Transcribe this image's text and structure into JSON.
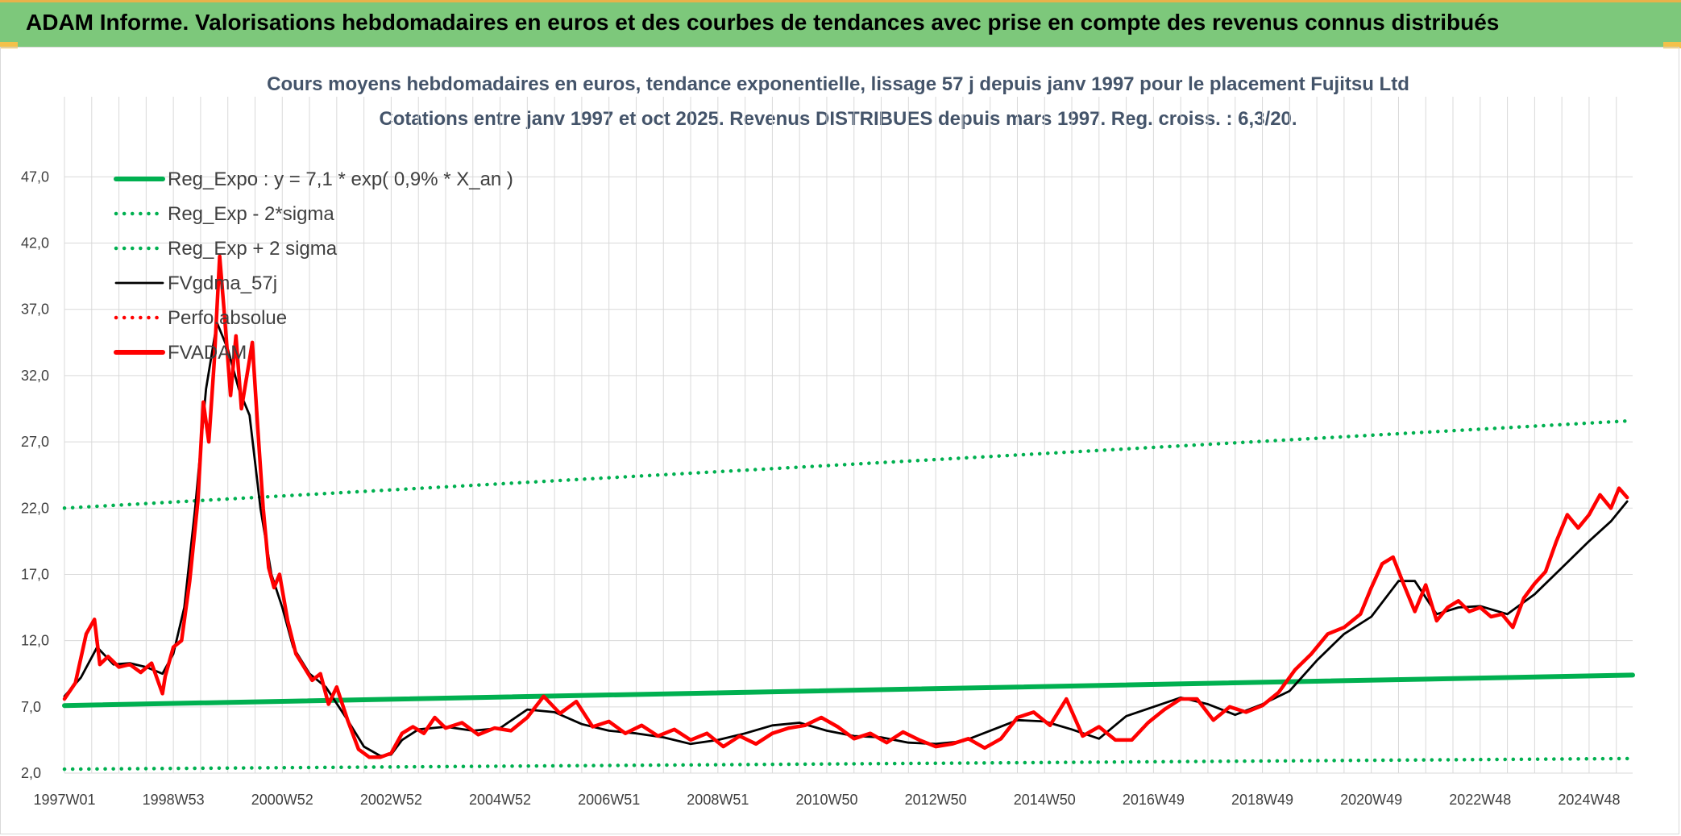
{
  "header": {
    "title": "ADAM Informe. Valorisations hebdomadaires en euros et des courbes de tendances avec prise en compte des revenus connus distribués"
  },
  "colors": {
    "header_bg": "#7dc87b",
    "accent": "#f3c14a",
    "reg_green": "#00b050",
    "smoothed_black": "#000000",
    "price_red": "#ff0000",
    "grid": "#d9d9d9",
    "title_text": "#44546a"
  },
  "chart_data": {
    "type": "line",
    "title": "Cours moyens hebdomadaires en euros, tendance exponentielle, lissage 57 j depuis janv 1997 pour le placement Fujitsu Ltd",
    "subtitle": "Cotations entre janv 1997 et oct 2025. Revenus DISTRIBUES depuis mars 1997. Reg. croiss. : 6,3/20.",
    "xlabel": "",
    "ylabel": "",
    "x_range": [
      1997.0,
      2025.8
    ],
    "ylim": [
      2.0,
      50.0
    ],
    "y_ticks": [
      "2,0",
      "7,0",
      "12,0",
      "17,0",
      "22,0",
      "27,0",
      "32,0",
      "37,0",
      "42,0",
      "47,0"
    ],
    "y_tick_values": [
      2,
      7,
      12,
      17,
      22,
      27,
      32,
      37,
      42,
      47
    ],
    "x_ticks": [
      {
        "label": "1997W01",
        "x": 1997.0
      },
      {
        "label": "1998W53",
        "x": 1999.0
      },
      {
        "label": "2000W52",
        "x": 2001.0
      },
      {
        "label": "2002W52",
        "x": 2003.0
      },
      {
        "label": "2004W52",
        "x": 2005.0
      },
      {
        "label": "2006W51",
        "x": 2007.0
      },
      {
        "label": "2008W51",
        "x": 2009.0
      },
      {
        "label": "2010W50",
        "x": 2011.0
      },
      {
        "label": "2012W50",
        "x": 2013.0
      },
      {
        "label": "2014W50",
        "x": 2015.0
      },
      {
        "label": "2016W49",
        "x": 2017.0
      },
      {
        "label": "2018W49",
        "x": 2019.0
      },
      {
        "label": "2020W49",
        "x": 2021.0
      },
      {
        "label": "2022W48",
        "x": 2023.0
      },
      {
        "label": "2024W48",
        "x": 2025.0
      }
    ],
    "grid": true,
    "legend_position": "top-left",
    "series": [
      {
        "name": "Reg_Expo : y = 7,1 * exp( 0,9% *  X_an )",
        "style": "solid-thick",
        "color": "#00b050",
        "x": [
          1997.0,
          2025.8
        ],
        "y": [
          7.1,
          9.4
        ]
      },
      {
        "name": "Reg_Exp - 2*sigma",
        "style": "dotted",
        "color": "#00b050",
        "x": [
          1997.0,
          2025.8
        ],
        "y": [
          2.3,
          3.1
        ]
      },
      {
        "name": "Reg_Exp + 2 sigma",
        "style": "dotted",
        "color": "#00b050",
        "x": [
          1997.0,
          2025.8
        ],
        "y": [
          22.0,
          28.6
        ]
      },
      {
        "name": "FVgdma_57j",
        "style": "solid",
        "color": "#000000",
        "x": [
          1997.0,
          1997.3,
          1997.6,
          1997.9,
          1998.2,
          1998.5,
          1998.8,
          1999.0,
          1999.2,
          1999.4,
          1999.6,
          1999.8,
          2000.0,
          2000.2,
          2000.4,
          2000.6,
          2000.8,
          2001.0,
          2001.2,
          2001.5,
          2001.8,
          2002.2,
          2002.5,
          2002.8,
          2003.0,
          2003.2,
          2003.5,
          2004.0,
          2004.5,
          2005.0,
          2005.5,
          2006.0,
          2006.5,
          2007.0,
          2007.5,
          2008.0,
          2008.5,
          2009.0,
          2009.5,
          2010.0,
          2010.5,
          2011.0,
          2011.5,
          2012.0,
          2012.5,
          2013.0,
          2013.5,
          2014.0,
          2014.5,
          2015.0,
          2015.5,
          2016.0,
          2016.5,
          2017.0,
          2017.5,
          2018.0,
          2018.5,
          2019.0,
          2019.5,
          2020.0,
          2020.5,
          2021.0,
          2021.5,
          2021.8,
          2022.2,
          2022.6,
          2023.0,
          2023.5,
          2024.0,
          2024.5,
          2025.0,
          2025.4,
          2025.7
        ],
        "y": [
          7.8,
          9.2,
          11.5,
          10.2,
          10.3,
          10.0,
          9.5,
          11.0,
          14.5,
          22.0,
          31.0,
          36.0,
          34.0,
          31.0,
          29.0,
          22.0,
          17.0,
          14.5,
          11.5,
          9.5,
          8.5,
          6.0,
          4.0,
          3.3,
          3.4,
          4.5,
          5.3,
          5.5,
          5.2,
          5.4,
          6.8,
          6.6,
          5.7,
          5.2,
          5.0,
          4.7,
          4.2,
          4.5,
          5.0,
          5.6,
          5.8,
          5.2,
          4.8,
          4.7,
          4.3,
          4.2,
          4.4,
          5.2,
          6.0,
          5.9,
          5.3,
          4.6,
          6.3,
          7.0,
          7.7,
          7.2,
          6.4,
          7.2,
          8.2,
          10.5,
          12.5,
          13.8,
          16.5,
          16.5,
          14.0,
          14.5,
          14.6,
          14.0,
          15.5,
          17.5,
          19.5,
          21.0,
          22.5
        ]
      },
      {
        "name": "Perfo.absolue",
        "style": "dotted",
        "color": "#ff0000",
        "x": [],
        "y": []
      },
      {
        "name": "FVADAM",
        "style": "solid-thick",
        "color": "#ff0000",
        "x": [
          1997.0,
          1997.2,
          1997.4,
          1997.55,
          1997.65,
          1997.8,
          1998.0,
          1998.2,
          1998.4,
          1998.6,
          1998.8,
          1998.85,
          1999.0,
          1999.15,
          1999.3,
          1999.45,
          1999.55,
          1999.65,
          1999.75,
          1999.85,
          1999.95,
          2000.05,
          2000.15,
          2000.25,
          2000.35,
          2000.45,
          2000.55,
          2000.65,
          2000.75,
          2000.85,
          2000.95,
          2001.1,
          2001.25,
          2001.4,
          2001.55,
          2001.7,
          2001.85,
          2002.0,
          2002.2,
          2002.4,
          2002.6,
          2002.8,
          2003.0,
          2003.2,
          2003.4,
          2003.6,
          2003.8,
          2004.0,
          2004.3,
          2004.6,
          2004.9,
          2005.2,
          2005.5,
          2005.8,
          2006.1,
          2006.4,
          2006.7,
          2007.0,
          2007.3,
          2007.6,
          2007.9,
          2008.2,
          2008.5,
          2008.8,
          2009.1,
          2009.4,
          2009.7,
          2010.0,
          2010.3,
          2010.6,
          2010.9,
          2011.2,
          2011.5,
          2011.8,
          2012.1,
          2012.4,
          2012.7,
          2013.0,
          2013.3,
          2013.6,
          2013.9,
          2014.2,
          2014.5,
          2014.8,
          2015.1,
          2015.4,
          2015.7,
          2016.0,
          2016.3,
          2016.6,
          2016.9,
          2017.2,
          2017.5,
          2017.8,
          2018.1,
          2018.4,
          2018.7,
          2019.0,
          2019.3,
          2019.6,
          2019.9,
          2020.2,
          2020.5,
          2020.8,
          2021.0,
          2021.2,
          2021.4,
          2021.6,
          2021.8,
          2022.0,
          2022.2,
          2022.4,
          2022.6,
          2022.8,
          2023.0,
          2023.2,
          2023.4,
          2023.6,
          2023.8,
          2024.0,
          2024.2,
          2024.4,
          2024.6,
          2024.8,
          2025.0,
          2025.2,
          2025.4,
          2025.55,
          2025.7
        ],
        "y": [
          7.6,
          8.8,
          12.5,
          13.6,
          10.2,
          10.8,
          10.0,
          10.2,
          9.6,
          10.3,
          8.0,
          9.3,
          11.5,
          12.0,
          16.5,
          22.5,
          30.0,
          27.0,
          33.0,
          41.0,
          36.0,
          30.5,
          35.0,
          29.5,
          32.0,
          34.5,
          28.0,
          22.0,
          17.5,
          16.0,
          17.0,
          13.5,
          11.0,
          10.0,
          9.0,
          9.5,
          7.2,
          8.5,
          6.0,
          3.8,
          3.2,
          3.2,
          3.5,
          5.0,
          5.5,
          5.0,
          6.2,
          5.4,
          5.8,
          4.9,
          5.4,
          5.2,
          6.2,
          7.8,
          6.5,
          7.4,
          5.5,
          5.9,
          5.0,
          5.6,
          4.8,
          5.3,
          4.5,
          5.0,
          4.0,
          4.8,
          4.2,
          5.0,
          5.4,
          5.6,
          6.2,
          5.5,
          4.6,
          5.0,
          4.3,
          5.1,
          4.5,
          4.0,
          4.2,
          4.6,
          3.9,
          4.6,
          6.2,
          6.6,
          5.6,
          7.6,
          4.8,
          5.5,
          4.5,
          4.5,
          5.8,
          6.8,
          7.6,
          7.6,
          6.0,
          7.0,
          6.6,
          7.1,
          8.1,
          9.8,
          11.0,
          12.5,
          13.0,
          14.0,
          16.0,
          17.8,
          18.3,
          16.2,
          14.2,
          16.2,
          13.5,
          14.5,
          15.0,
          14.2,
          14.5,
          13.8,
          14.0,
          13.0,
          15.2,
          16.3,
          17.2,
          19.5,
          21.5,
          20.5,
          21.5,
          23.0,
          22.0,
          23.5,
          22.8
        ]
      }
    ]
  }
}
